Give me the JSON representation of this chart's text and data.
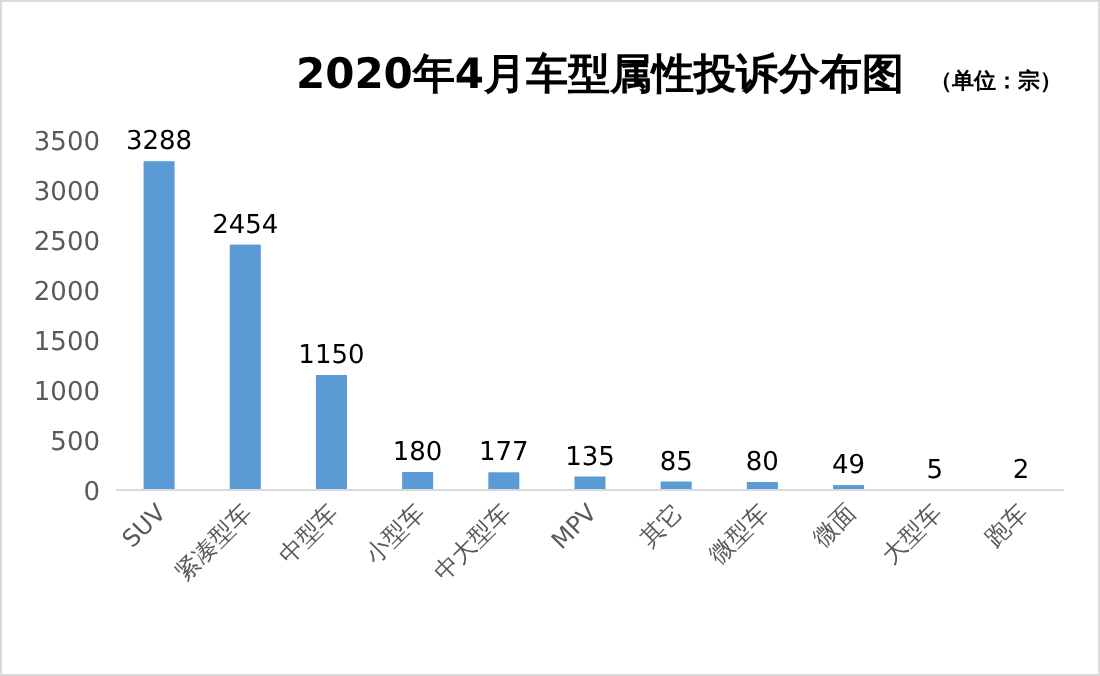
{
  "chart_data": {
    "type": "bar",
    "title": "2020年4月车型属性投诉分布图",
    "subtitle": "（单位：宗）",
    "categories": [
      "SUV",
      "紧凑型车",
      "中型车",
      "小型车",
      "中大型车",
      "MPV",
      "其它",
      "微型车",
      "微面",
      "大型车",
      "跑车"
    ],
    "values": [
      3288,
      2454,
      1150,
      180,
      177,
      135,
      85,
      80,
      49,
      5,
      2
    ],
    "color": "#5b9bd5",
    "ylim": [
      0,
      3500
    ],
    "yticks": [
      0,
      500,
      1000,
      1500,
      2000,
      2500,
      3000,
      3500
    ],
    "data_labels": true
  }
}
